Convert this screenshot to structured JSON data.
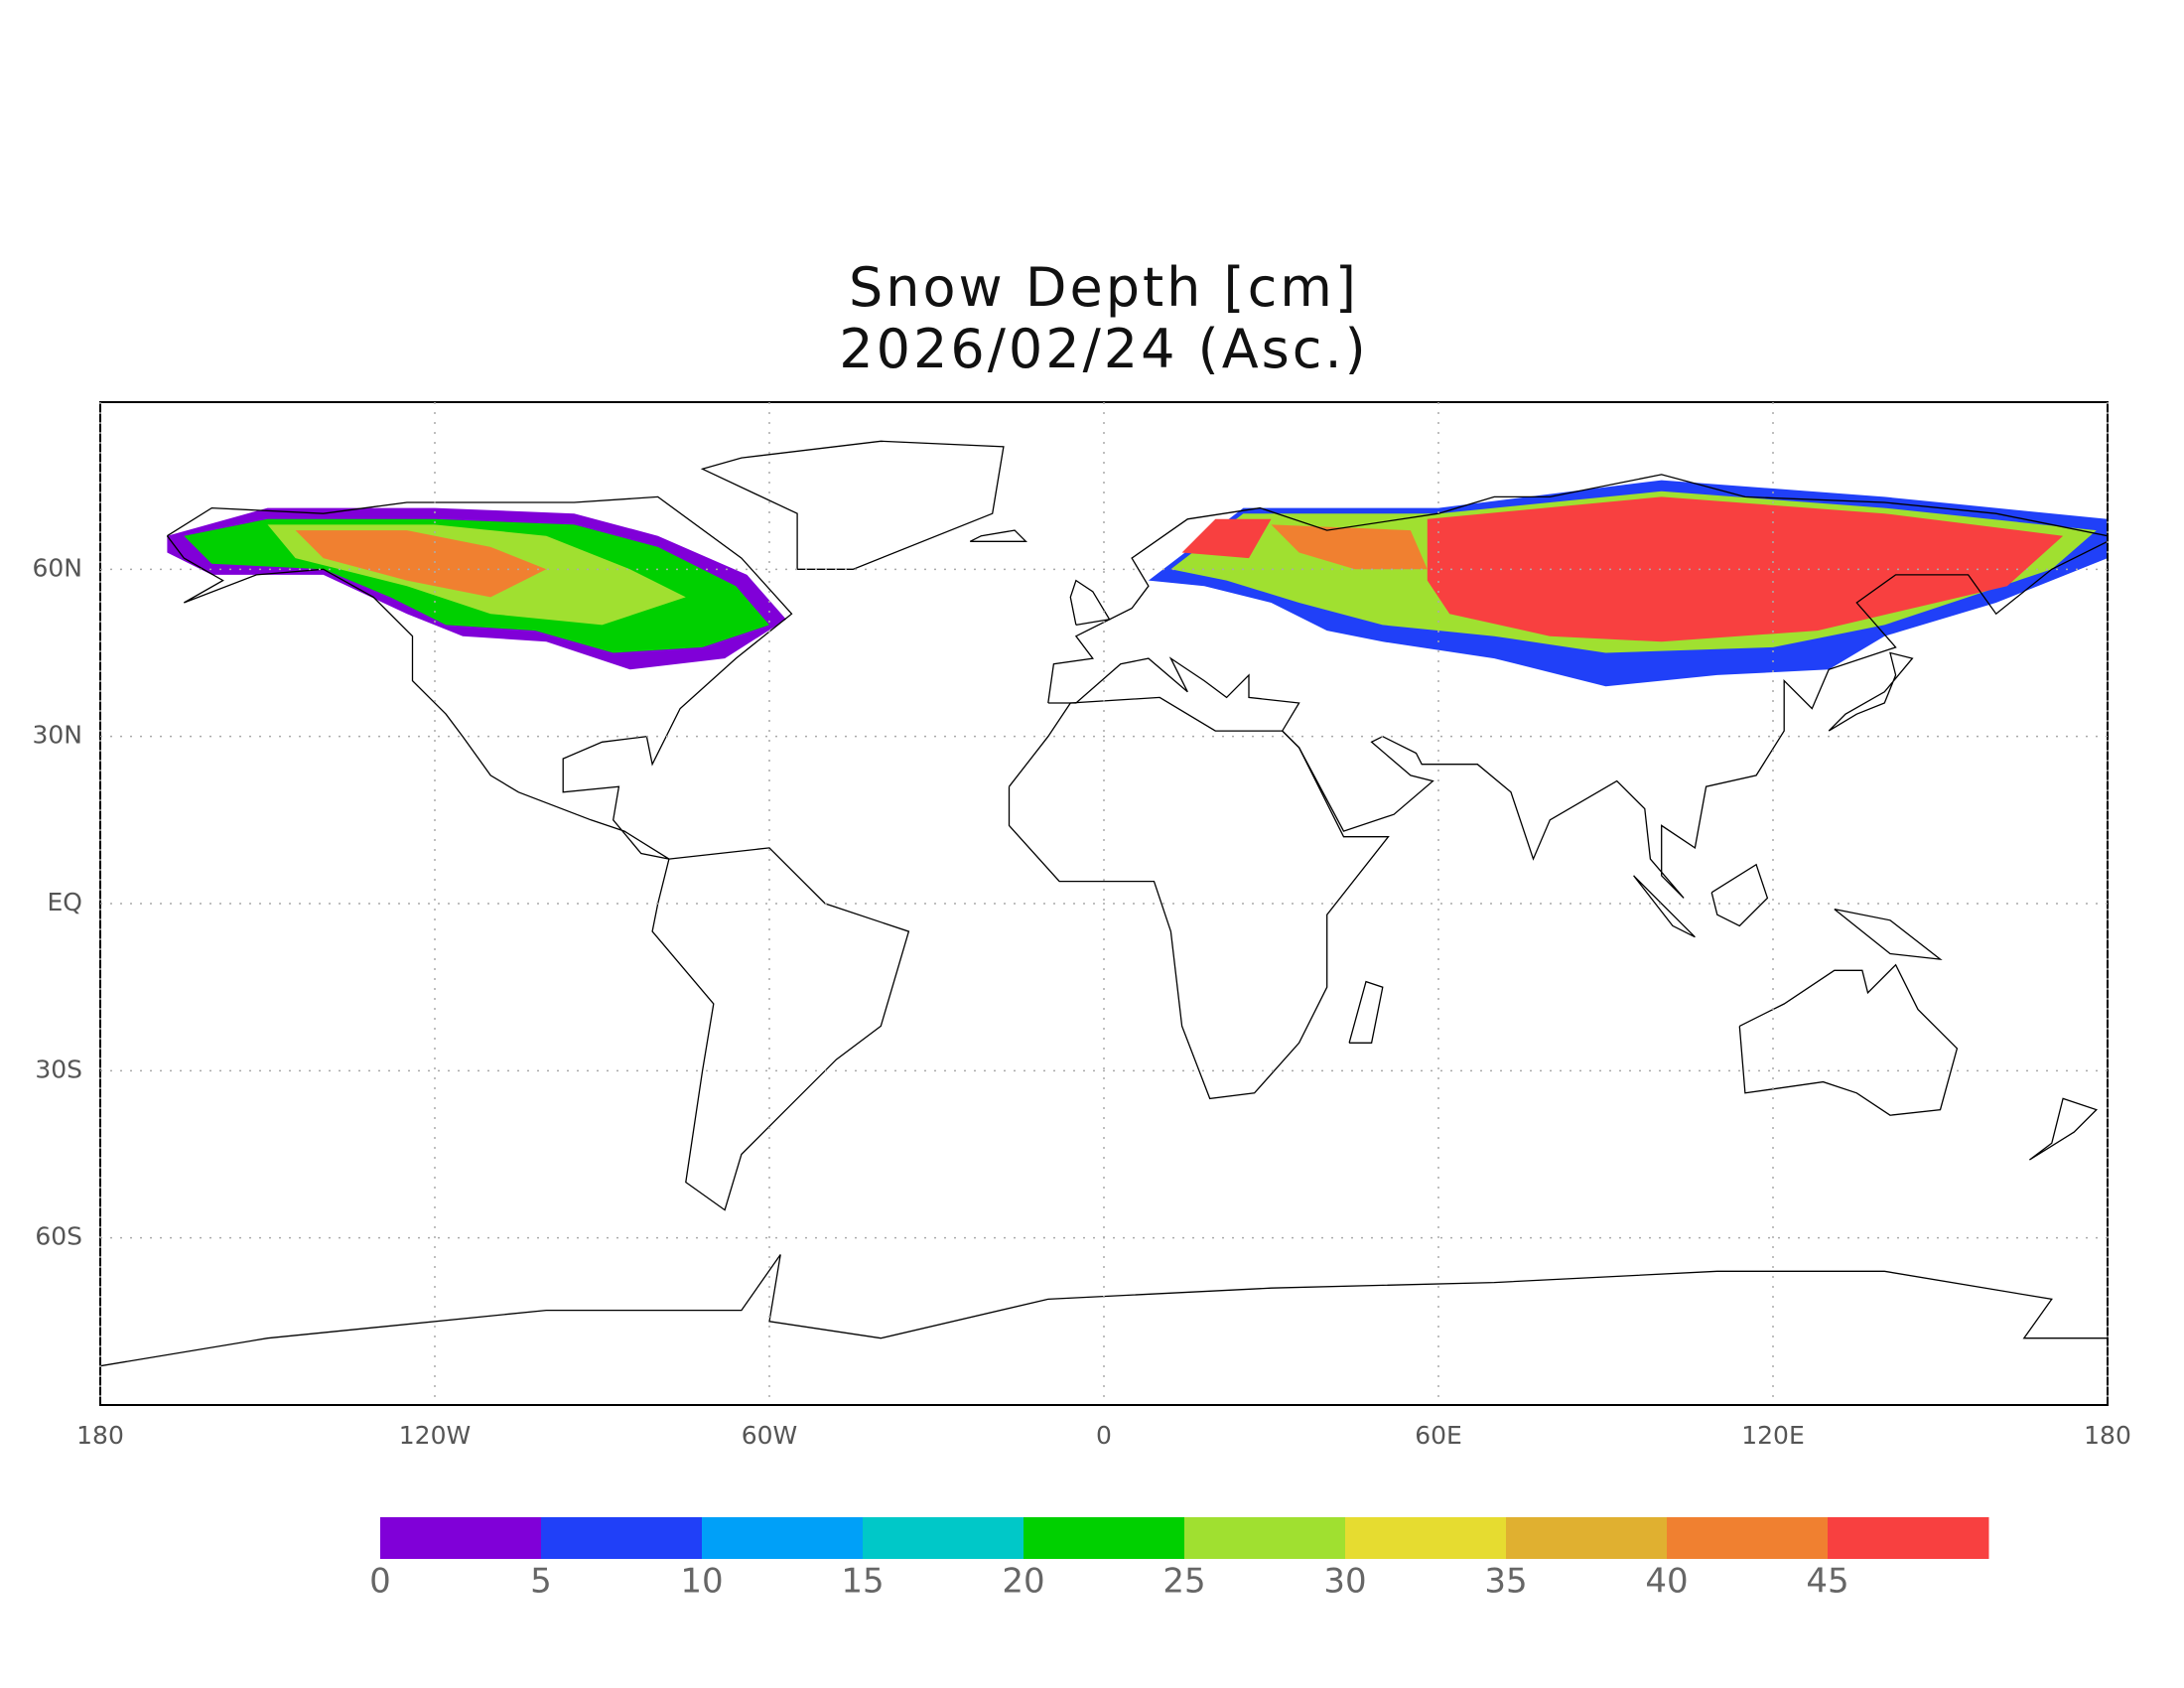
{
  "map": {
    "title": [
      "Snow Depth [cm]",
      "2026/02/24 (Asc.)"
    ],
    "xlim": [
      -180,
      180
    ],
    "ylim": [
      -90,
      90
    ],
    "xticks": [
      {
        "value": -180,
        "label": "180"
      },
      {
        "value": -120,
        "label": "120W"
      },
      {
        "value": -60,
        "label": "60W"
      },
      0,
      {
        "value": 60,
        "label": "60E"
      },
      {
        "value": 120,
        "label": "120E"
      },
      {
        "value": 180,
        "label": "180"
      }
    ],
    "yticks": [
      {
        "value": 60,
        "label": "60N"
      },
      {
        "value": 30,
        "label": "30N"
      },
      {
        "value": 0,
        "label": "EQ"
      },
      {
        "value": -30,
        "label": "30S"
      },
      {
        "value": -60,
        "label": "60S"
      }
    ],
    "grid": true,
    "colorbar": {
      "levels": [
        0,
        5,
        10,
        15,
        20,
        25,
        30,
        35,
        40,
        45
      ],
      "colors": [
        "#8000d8",
        "#2040f8",
        "#00a0f8",
        "#00c8c8",
        "#00d000",
        "#a0e030",
        "#e6dc30",
        "#e0b030",
        "#f08030",
        "#f84040"
      ]
    }
  }
}
